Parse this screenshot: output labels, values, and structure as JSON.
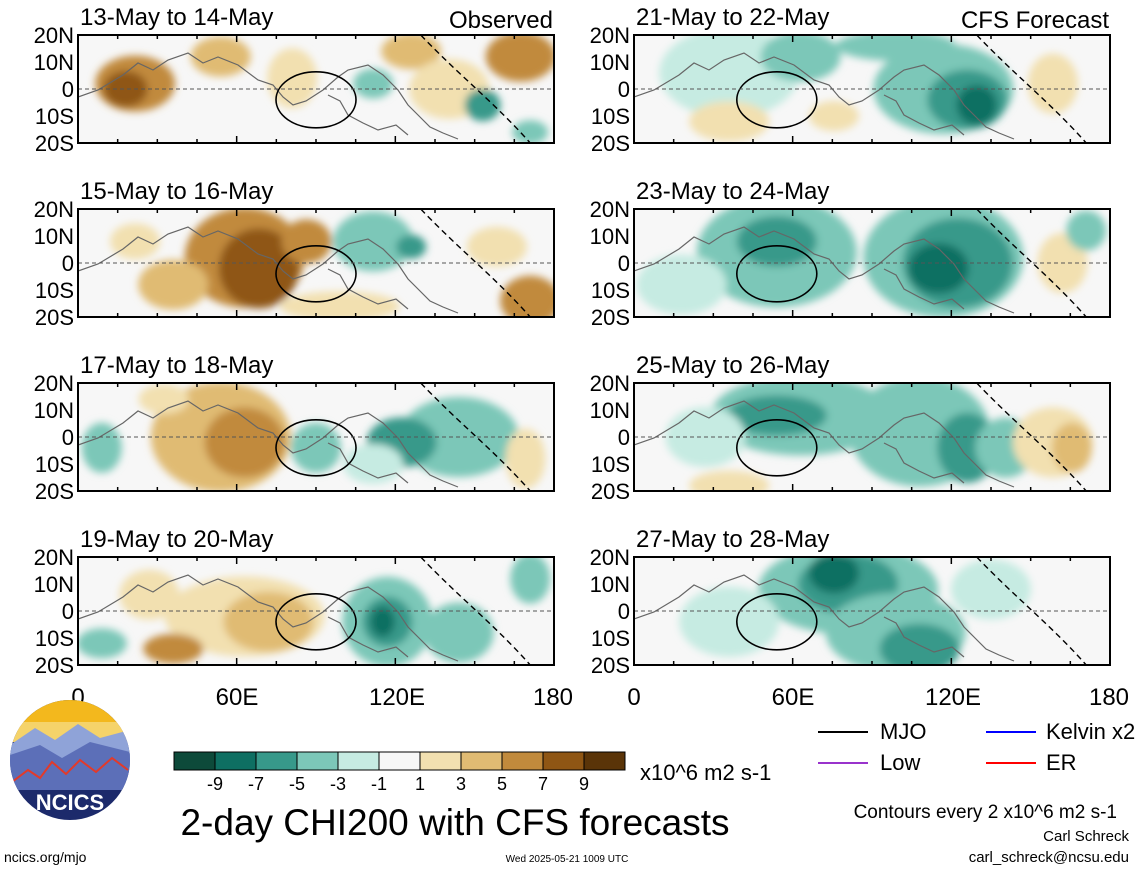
{
  "columns": {
    "left_label": "Observed",
    "right_label": "CFS Forecast"
  },
  "panels_left": [
    "13-May to 14-May",
    "15-May to 16-May",
    "17-May to 18-May",
    "19-May to 20-May"
  ],
  "panels_right": [
    "21-May to 22-May",
    "23-May to 24-May",
    "25-May to 26-May",
    "27-May to 28-May"
  ],
  "lat_labels": [
    "20N",
    "10N",
    "0",
    "10S",
    "20S"
  ],
  "lon_labels": [
    "0",
    "60E",
    "120E",
    "180"
  ],
  "colorbar": {
    "ticks": [
      "-9",
      "-7",
      "-5",
      "-3",
      "-1",
      "1",
      "3",
      "5",
      "7",
      "9"
    ],
    "colors": [
      "#0d4a3a",
      "#0e6f62",
      "#37998a",
      "#7cc7b8",
      "#c6ebe2",
      "#f7f7f7",
      "#f2e0b0",
      "#e0bb73",
      "#c18a3c",
      "#8f5614",
      "#5a3408"
    ],
    "units": "x10^6 m2 s-1"
  },
  "title": "2-day CHI200 with CFS forecasts",
  "legend": [
    {
      "label": "MJO",
      "color": "#000000"
    },
    {
      "label": "Kelvin x2",
      "color": "#0000ff"
    },
    {
      "label": "Low",
      "color": "#9933cc"
    },
    {
      "label": "ER",
      "color": "#ff0000"
    }
  ],
  "contour_note": "Contours every 2 x10^6 m2 s-1",
  "logo_text": "NCICS",
  "url": "ncics.org/mjo",
  "timestamp": "Wed 2025-05-21 1009 UTC",
  "author": "Carl Schreck",
  "email": "carl_schreck@ncsu.edu"
}
